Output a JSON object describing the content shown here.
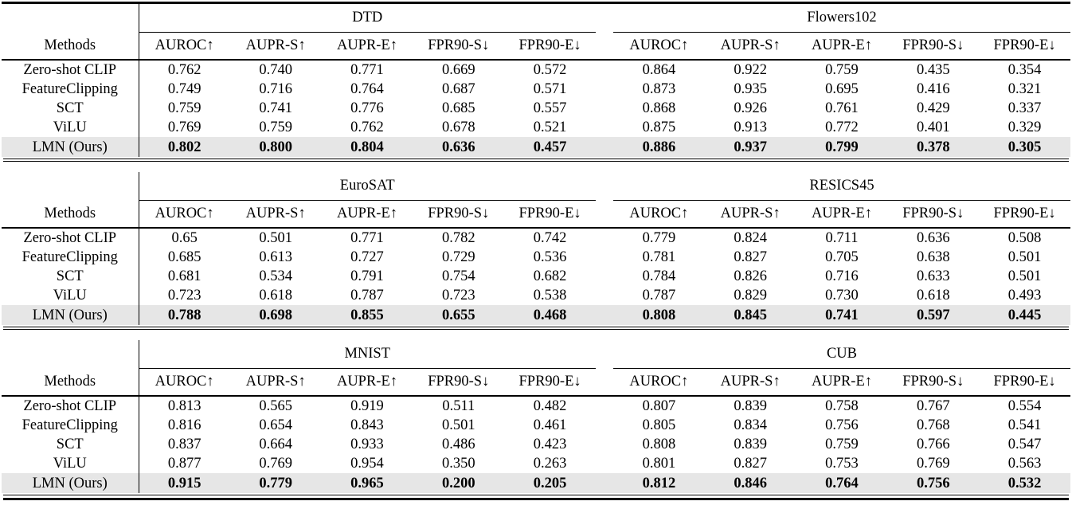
{
  "labels": {
    "methods_header": "Methods"
  },
  "metrics": [
    "AUROC↑",
    "AUPR-S↑",
    "AUPR-E↑",
    "FPR90-S↓",
    "FPR90-E↓"
  ],
  "colors": {
    "background": "#ffffff",
    "text": "#000000",
    "rule": "#000000",
    "highlight_row_bg": "#e6e6e6"
  },
  "sections": [
    {
      "datasets": [
        "DTD",
        "Flowers102"
      ],
      "rows": [
        {
          "method": "Zero-shot CLIP",
          "highlight": false,
          "values": [
            "0.762",
            "0.740",
            "0.771",
            "0.669",
            "0.572",
            "0.864",
            "0.922",
            "0.759",
            "0.435",
            "0.354"
          ]
        },
        {
          "method": "FeatureClipping",
          "highlight": false,
          "values": [
            "0.749",
            "0.716",
            "0.764",
            "0.687",
            "0.571",
            "0.873",
            "0.935",
            "0.695",
            "0.416",
            "0.321"
          ]
        },
        {
          "method": "SCT",
          "highlight": false,
          "values": [
            "0.759",
            "0.741",
            "0.776",
            "0.685",
            "0.557",
            "0.868",
            "0.926",
            "0.761",
            "0.429",
            "0.337"
          ]
        },
        {
          "method": "ViLU",
          "highlight": false,
          "values": [
            "0.769",
            "0.759",
            "0.762",
            "0.678",
            "0.521",
            "0.875",
            "0.913",
            "0.772",
            "0.401",
            "0.329"
          ]
        },
        {
          "method": "LMN (Ours)",
          "highlight": true,
          "values": [
            "0.802",
            "0.800",
            "0.804",
            "0.636",
            "0.457",
            "0.886",
            "0.937",
            "0.799",
            "0.378",
            "0.305"
          ]
        }
      ]
    },
    {
      "datasets": [
        "EuroSAT",
        "RESICS45"
      ],
      "rows": [
        {
          "method": "Zero-shot CLIP",
          "highlight": false,
          "values": [
            "0.65",
            "0.501",
            "0.771",
            "0.782",
            "0.742",
            "0.779",
            "0.824",
            "0.711",
            "0.636",
            "0.508"
          ]
        },
        {
          "method": "FeatureClipping",
          "highlight": false,
          "values": [
            "0.685",
            "0.613",
            "0.727",
            "0.729",
            "0.536",
            "0.781",
            "0.827",
            "0.705",
            "0.638",
            "0.501"
          ]
        },
        {
          "method": "SCT",
          "highlight": false,
          "values": [
            "0.681",
            "0.534",
            "0.791",
            "0.754",
            "0.682",
            "0.784",
            "0.826",
            "0.716",
            "0.633",
            "0.501"
          ]
        },
        {
          "method": "ViLU",
          "highlight": false,
          "values": [
            "0.723",
            "0.618",
            "0.787",
            "0.723",
            "0.538",
            "0.787",
            "0.829",
            "0.730",
            "0.618",
            "0.493"
          ]
        },
        {
          "method": "LMN (Ours)",
          "highlight": true,
          "values": [
            "0.788",
            "0.698",
            "0.855",
            "0.655",
            "0.468",
            "0.808",
            "0.845",
            "0.741",
            "0.597",
            "0.445"
          ]
        }
      ]
    },
    {
      "datasets": [
        "MNIST",
        "CUB"
      ],
      "rows": [
        {
          "method": "Zero-shot CLIP",
          "highlight": false,
          "values": [
            "0.813",
            "0.565",
            "0.919",
            "0.511",
            "0.482",
            "0.807",
            "0.839",
            "0.758",
            "0.767",
            "0.554"
          ]
        },
        {
          "method": "FeatureClipping",
          "highlight": false,
          "values": [
            "0.816",
            "0.654",
            "0.843",
            "0.501",
            "0.461",
            "0.805",
            "0.834",
            "0.756",
            "0.768",
            "0.541"
          ]
        },
        {
          "method": "SCT",
          "highlight": false,
          "values": [
            "0.837",
            "0.664",
            "0.933",
            "0.486",
            "0.423",
            "0.808",
            "0.839",
            "0.759",
            "0.766",
            "0.547"
          ]
        },
        {
          "method": "ViLU",
          "highlight": false,
          "values": [
            "0.877",
            "0.769",
            "0.954",
            "0.350",
            "0.263",
            "0.801",
            "0.827",
            "0.753",
            "0.769",
            "0.563"
          ]
        },
        {
          "method": "LMN (Ours)",
          "highlight": true,
          "values": [
            "0.915",
            "0.779",
            "0.965",
            "0.200",
            "0.205",
            "0.812",
            "0.846",
            "0.764",
            "0.756",
            "0.532"
          ]
        }
      ]
    }
  ]
}
